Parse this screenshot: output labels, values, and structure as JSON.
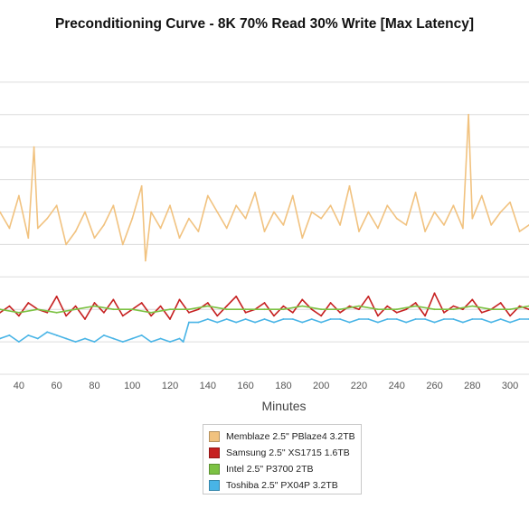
{
  "chart_data": {
    "type": "line",
    "title": "Preconditioning Curve - 8K 70% Read 30% Write [Max Latency]",
    "xlabel": "Minutes",
    "ylabel": "",
    "xlim": [
      30,
      310
    ],
    "ylim": [
      0,
      100
    ],
    "xticks": [
      40,
      60,
      80,
      100,
      120,
      140,
      160,
      180,
      200,
      220,
      240,
      260,
      280,
      300
    ],
    "yticks": [
      0,
      10,
      20,
      30,
      40,
      50,
      60,
      70,
      80,
      90
    ],
    "grid": true,
    "legend": "bottom-center",
    "series": [
      {
        "name": "Memblaze 2.5\" PBlaze4 3.2TB",
        "color": "#f1c27f",
        "x": [
          30,
          35,
          40,
          45,
          48,
          50,
          55,
          60,
          65,
          70,
          75,
          80,
          85,
          90,
          95,
          100,
          105,
          107,
          110,
          115,
          120,
          125,
          130,
          135,
          140,
          145,
          150,
          155,
          160,
          165,
          170,
          175,
          180,
          185,
          190,
          195,
          200,
          205,
          210,
          215,
          220,
          225,
          230,
          235,
          240,
          245,
          250,
          255,
          260,
          265,
          270,
          275,
          278,
          280,
          285,
          290,
          295,
          300,
          305,
          310
        ],
        "values": [
          50,
          45,
          55,
          42,
          70,
          45,
          48,
          52,
          40,
          44,
          50,
          42,
          46,
          52,
          40,
          48,
          58,
          35,
          50,
          45,
          52,
          42,
          48,
          44,
          55,
          50,
          45,
          52,
          48,
          56,
          44,
          50,
          46,
          55,
          42,
          50,
          48,
          52,
          46,
          58,
          44,
          50,
          45,
          52,
          48,
          46,
          56,
          44,
          50,
          46,
          52,
          45,
          80,
          48,
          55,
          46,
          50,
          53,
          44,
          46
        ]
      },
      {
        "name": "Samsung 2.5\" XS1715 1.6TB",
        "color": "#c62020",
        "x": [
          30,
          35,
          40,
          45,
          50,
          55,
          60,
          65,
          70,
          75,
          80,
          85,
          90,
          95,
          100,
          105,
          110,
          115,
          120,
          125,
          130,
          135,
          140,
          145,
          150,
          155,
          160,
          165,
          170,
          175,
          180,
          185,
          190,
          195,
          200,
          205,
          210,
          215,
          220,
          225,
          230,
          235,
          240,
          245,
          250,
          255,
          260,
          265,
          270,
          275,
          280,
          285,
          290,
          295,
          300,
          305,
          310
        ],
        "values": [
          19,
          21,
          18,
          22,
          20,
          19,
          24,
          18,
          21,
          17,
          22,
          19,
          23,
          18,
          20,
          22,
          18,
          21,
          17,
          23,
          19,
          20,
          22,
          18,
          21,
          24,
          19,
          20,
          22,
          18,
          21,
          19,
          23,
          20,
          18,
          22,
          19,
          21,
          20,
          24,
          18,
          21,
          19,
          20,
          22,
          18,
          25,
          19,
          21,
          20,
          23,
          19,
          20,
          22,
          18,
          21,
          20
        ]
      },
      {
        "name": "Intel 2.5\" P3700 2TB",
        "color": "#7cc243",
        "x": [
          30,
          40,
          50,
          60,
          70,
          80,
          90,
          100,
          110,
          120,
          130,
          140,
          150,
          160,
          170,
          180,
          190,
          200,
          210,
          220,
          230,
          240,
          250,
          260,
          270,
          280,
          290,
          300,
          310
        ],
        "values": [
          20,
          19,
          20,
          19,
          20,
          21,
          20,
          20,
          19,
          20,
          20,
          21,
          20,
          20,
          20,
          20,
          21,
          20,
          20,
          21,
          20,
          20,
          21,
          20,
          20,
          21,
          20,
          20,
          21
        ]
      },
      {
        "name": "Toshiba 2.5\" PX04P 3.2TB",
        "color": "#48b4e6",
        "x": [
          30,
          35,
          40,
          45,
          50,
          55,
          60,
          65,
          70,
          75,
          80,
          85,
          90,
          95,
          100,
          105,
          110,
          115,
          120,
          125,
          127,
          130,
          135,
          140,
          145,
          150,
          155,
          160,
          165,
          170,
          175,
          180,
          185,
          190,
          195,
          200,
          205,
          210,
          215,
          220,
          225,
          230,
          235,
          240,
          245,
          250,
          255,
          260,
          265,
          270,
          275,
          280,
          285,
          290,
          295,
          300,
          305,
          310
        ],
        "values": [
          11,
          12,
          10,
          12,
          11,
          13,
          12,
          11,
          10,
          11,
          10,
          12,
          11,
          10,
          11,
          12,
          10,
          11,
          10,
          11,
          10,
          16,
          16,
          17,
          16,
          17,
          16,
          17,
          16,
          17,
          16,
          17,
          17,
          16,
          17,
          16,
          17,
          17,
          16,
          17,
          17,
          16,
          17,
          17,
          16,
          17,
          17,
          16,
          17,
          17,
          16,
          17,
          17,
          16,
          17,
          16,
          17,
          17
        ]
      }
    ]
  }
}
